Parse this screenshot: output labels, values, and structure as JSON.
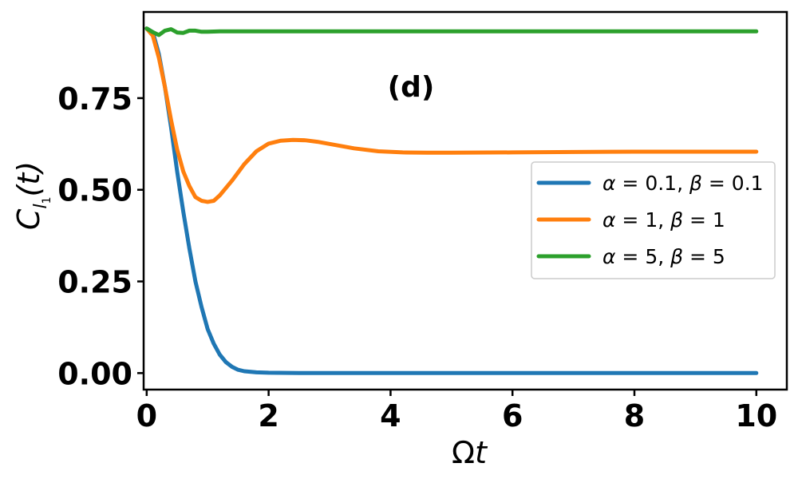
{
  "chart_data": {
    "type": "line",
    "xlabel_symbol": "Ω",
    "xlabel_var": "t",
    "ylabel_main": "C",
    "ylabel_sub": "l",
    "ylabel_subsub": "1",
    "ylabel_arg": "(t)",
    "annotation": "(d)",
    "xlim": [
      -0.05,
      10.5
    ],
    "ylim": [
      -0.045,
      0.985
    ],
    "xticks": [
      0,
      2,
      4,
      6,
      8,
      10
    ],
    "xtick_labels": [
      "0",
      "2",
      "4",
      "6",
      "8",
      "10"
    ],
    "yticks": [
      0.0,
      0.25,
      0.5,
      0.75
    ],
    "ytick_labels": [
      "0.00",
      "0.25",
      "0.50",
      "0.75"
    ],
    "grid": false,
    "legend_position": "center-right",
    "series": [
      {
        "name": "α = 0.1, β = 0.1",
        "name_parts": [
          "α",
          " = 0.1, ",
          "β",
          " = 0.1"
        ],
        "color": "#1f77b4",
        "x": [
          0,
          0.1,
          0.2,
          0.3,
          0.4,
          0.5,
          0.6,
          0.7,
          0.8,
          0.9,
          1.0,
          1.1,
          1.2,
          1.3,
          1.4,
          1.5,
          1.6,
          1.8,
          2.0,
          2.5,
          3,
          4,
          5,
          6,
          7,
          8,
          9,
          10
        ],
        "y": [
          0.94,
          0.93,
          0.87,
          0.78,
          0.67,
          0.55,
          0.44,
          0.34,
          0.25,
          0.18,
          0.12,
          0.08,
          0.05,
          0.03,
          0.017,
          0.009,
          0.005,
          0.002,
          0.001,
          0.0,
          0.0,
          0.0,
          0.0,
          0.0,
          0.0,
          0.0,
          0.0,
          0.0
        ]
      },
      {
        "name": "α = 1, β = 1",
        "name_parts": [
          "α",
          " = 1, ",
          "β",
          " = 1"
        ],
        "color": "#ff7f0e",
        "x": [
          0,
          0.1,
          0.2,
          0.3,
          0.4,
          0.5,
          0.6,
          0.7,
          0.8,
          0.9,
          1.0,
          1.1,
          1.2,
          1.4,
          1.6,
          1.8,
          2.0,
          2.2,
          2.4,
          2.6,
          2.8,
          3.0,
          3.4,
          3.8,
          4.2,
          4.6,
          5,
          6,
          7,
          8,
          9,
          10
        ],
        "y": [
          0.94,
          0.92,
          0.86,
          0.78,
          0.69,
          0.61,
          0.55,
          0.51,
          0.48,
          0.47,
          0.467,
          0.47,
          0.485,
          0.525,
          0.57,
          0.605,
          0.626,
          0.634,
          0.636,
          0.635,
          0.631,
          0.625,
          0.613,
          0.605,
          0.602,
          0.601,
          0.601,
          0.602,
          0.603,
          0.604,
          0.604,
          0.604
        ]
      },
      {
        "name": "α = 5, β = 5",
        "name_parts": [
          "α",
          " = 5, ",
          "β",
          " = 5"
        ],
        "color": "#2ca02c",
        "x": [
          0,
          0.1,
          0.2,
          0.3,
          0.4,
          0.5,
          0.6,
          0.7,
          0.8,
          0.9,
          1.0,
          1.2,
          1.5,
          2,
          3,
          4,
          5,
          6,
          7,
          8,
          9,
          10
        ],
        "y": [
          0.94,
          0.93,
          0.922,
          0.934,
          0.938,
          0.929,
          0.928,
          0.934,
          0.934,
          0.931,
          0.931,
          0.932,
          0.932,
          0.932,
          0.932,
          0.932,
          0.932,
          0.932,
          0.932,
          0.932,
          0.932,
          0.932
        ]
      }
    ]
  }
}
